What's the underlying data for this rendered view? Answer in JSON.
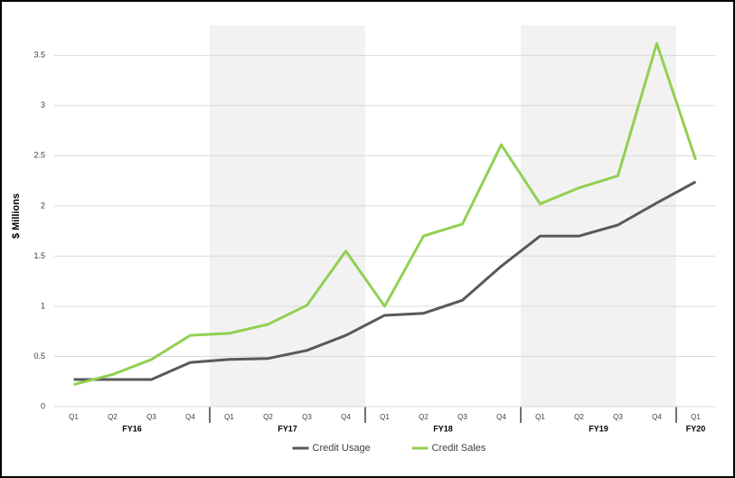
{
  "chart_data": {
    "type": "line",
    "y_label": "$ Millions",
    "categories": [
      "Q1",
      "Q2",
      "Q3",
      "Q4",
      "Q1",
      "Q2",
      "Q3",
      "Q4",
      "Q1",
      "Q2",
      "Q3",
      "Q4",
      "Q1",
      "Q2",
      "Q3",
      "Q4",
      "Q1"
    ],
    "groups": [
      "FY16",
      "FY17",
      "FY18",
      "FY19",
      "FY20"
    ],
    "series": [
      {
        "name": "Credit Usage",
        "color": "#595959",
        "values": [
          0.27,
          0.27,
          0.27,
          0.44,
          0.47,
          0.48,
          0.56,
          0.71,
          0.91,
          0.93,
          1.06,
          1.4,
          1.7,
          1.7,
          1.81,
          2.03,
          2.24
        ]
      },
      {
        "name": "Credit Sales",
        "color": "#92d050",
        "values": [
          0.22,
          0.32,
          0.47,
          0.71,
          0.73,
          0.82,
          1.01,
          1.55,
          1.0,
          1.7,
          1.82,
          2.61,
          2.02,
          2.18,
          2.3,
          3.62,
          2.46
        ]
      }
    ],
    "ylim": [
      0,
      3.8
    ],
    "yticks": [
      0,
      0.5,
      1,
      1.5,
      2,
      2.5,
      3,
      3.5
    ],
    "grid": true,
    "legend": "bottom"
  }
}
